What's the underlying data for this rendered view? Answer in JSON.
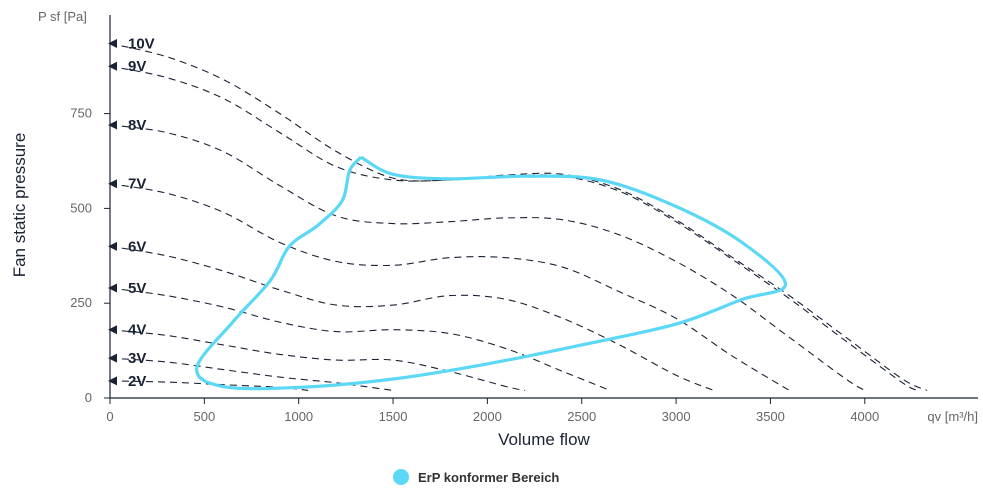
{
  "chart_data": {
    "type": "line",
    "title": "",
    "xlabel": "Volume flow",
    "ylabel": "Fan static pressure",
    "x_unit_label": "qv [m³/h]",
    "y_unit_label": "P sf [Pa]",
    "xlim": [
      0,
      4600
    ],
    "ylim": [
      0,
      1010
    ],
    "x_ticks": [
      0,
      500,
      1000,
      1500,
      2000,
      2500,
      3000,
      3500,
      4000
    ],
    "y_ticks": [
      0,
      250,
      500,
      750
    ],
    "grid": false,
    "legend_position": "bottom-center",
    "series": [
      {
        "name": "10V",
        "style": "dashed",
        "color": "#1a2233",
        "points": [
          [
            0,
            935
          ],
          [
            300,
            900
          ],
          [
            600,
            840
          ],
          [
            900,
            750
          ],
          [
            1200,
            650
          ],
          [
            1500,
            580
          ],
          [
            1800,
            575
          ],
          [
            2100,
            588
          ],
          [
            2400,
            590
          ],
          [
            2700,
            550
          ],
          [
            3000,
            470
          ],
          [
            3300,
            370
          ],
          [
            3600,
            270
          ],
          [
            3900,
            160
          ],
          [
            4200,
            50
          ],
          [
            4330,
            20
          ]
        ]
      },
      {
        "name": "9V",
        "style": "dashed",
        "color": "#1a2233",
        "points": [
          [
            0,
            875
          ],
          [
            300,
            845
          ],
          [
            600,
            790
          ],
          [
            900,
            700
          ],
          [
            1200,
            610
          ],
          [
            1500,
            575
          ],
          [
            1800,
            575
          ],
          [
            2100,
            585
          ],
          [
            2400,
            585
          ],
          [
            2700,
            545
          ],
          [
            3000,
            465
          ],
          [
            3300,
            365
          ],
          [
            3600,
            262
          ],
          [
            3900,
            150
          ],
          [
            4200,
            40
          ],
          [
            4280,
            20
          ]
        ]
      },
      {
        "name": "8V",
        "style": "dashed",
        "color": "#1a2233",
        "points": [
          [
            0,
            720
          ],
          [
            300,
            700
          ],
          [
            600,
            650
          ],
          [
            900,
            560
          ],
          [
            1200,
            480
          ],
          [
            1500,
            460
          ],
          [
            1800,
            465
          ],
          [
            2100,
            475
          ],
          [
            2400,
            470
          ],
          [
            2700,
            430
          ],
          [
            3000,
            360
          ],
          [
            3300,
            270
          ],
          [
            3600,
            160
          ],
          [
            3900,
            50
          ],
          [
            4000,
            20
          ]
        ]
      },
      {
        "name": "7V",
        "style": "dashed",
        "color": "#1a2233",
        "points": [
          [
            0,
            565
          ],
          [
            300,
            540
          ],
          [
            600,
            490
          ],
          [
            900,
            410
          ],
          [
            1200,
            360
          ],
          [
            1500,
            350
          ],
          [
            1800,
            370
          ],
          [
            2100,
            370
          ],
          [
            2400,
            345
          ],
          [
            2700,
            280
          ],
          [
            3000,
            210
          ],
          [
            3300,
            110
          ],
          [
            3600,
            20
          ]
        ]
      },
      {
        "name": "6V",
        "style": "dashed",
        "color": "#1a2233",
        "points": [
          [
            0,
            400
          ],
          [
            300,
            375
          ],
          [
            600,
            335
          ],
          [
            900,
            285
          ],
          [
            1200,
            245
          ],
          [
            1500,
            245
          ],
          [
            1800,
            270
          ],
          [
            2100,
            260
          ],
          [
            2400,
            210
          ],
          [
            2700,
            140
          ],
          [
            3000,
            60
          ],
          [
            3200,
            20
          ]
        ]
      },
      {
        "name": "5V",
        "style": "dashed",
        "color": "#1a2233",
        "points": [
          [
            0,
            290
          ],
          [
            300,
            270
          ],
          [
            600,
            240
          ],
          [
            900,
            200
          ],
          [
            1200,
            175
          ],
          [
            1500,
            180
          ],
          [
            1800,
            170
          ],
          [
            2100,
            130
          ],
          [
            2400,
            70
          ],
          [
            2650,
            20
          ]
        ]
      },
      {
        "name": "4V",
        "style": "dashed",
        "color": "#1a2233",
        "points": [
          [
            0,
            180
          ],
          [
            300,
            165
          ],
          [
            600,
            140
          ],
          [
            900,
            115
          ],
          [
            1200,
            100
          ],
          [
            1500,
            100
          ],
          [
            1800,
            70
          ],
          [
            2100,
            30
          ],
          [
            2200,
            20
          ]
        ]
      },
      {
        "name": "3V",
        "style": "dashed",
        "color": "#1a2233",
        "points": [
          [
            0,
            105
          ],
          [
            300,
            95
          ],
          [
            600,
            75
          ],
          [
            900,
            55
          ],
          [
            1200,
            40
          ],
          [
            1500,
            20
          ]
        ]
      },
      {
        "name": "2V",
        "style": "dashed",
        "color": "#1a2233",
        "points": [
          [
            0,
            45
          ],
          [
            300,
            42
          ],
          [
            600,
            35
          ],
          [
            900,
            28
          ],
          [
            1050,
            20
          ]
        ]
      },
      {
        "name": "ErP konformer Bereich",
        "style": "solid",
        "color": "#5ad8f5",
        "points": [
          [
            1330,
            635
          ],
          [
            1270,
            600
          ],
          [
            1230,
            520
          ],
          [
            1100,
            455
          ],
          [
            950,
            400
          ],
          [
            850,
            310
          ],
          [
            650,
            200
          ],
          [
            460,
            80
          ],
          [
            600,
            30
          ],
          [
            1000,
            28
          ],
          [
            1500,
            50
          ],
          [
            2000,
            90
          ],
          [
            2500,
            140
          ],
          [
            3000,
            195
          ],
          [
            3350,
            260
          ],
          [
            3580,
            300
          ],
          [
            3350,
            410
          ],
          [
            3000,
            505
          ],
          [
            2600,
            575
          ],
          [
            2200,
            585
          ],
          [
            1800,
            578
          ],
          [
            1500,
            590
          ],
          [
            1330,
            635
          ]
        ]
      }
    ]
  },
  "voltage_labels": [
    "10V",
    "9V",
    "8V",
    "7V",
    "6V",
    "5V",
    "4V",
    "3V",
    "2V"
  ],
  "legend": {
    "label": "ErP konformer Bereich",
    "color": "#5ad8f5"
  }
}
